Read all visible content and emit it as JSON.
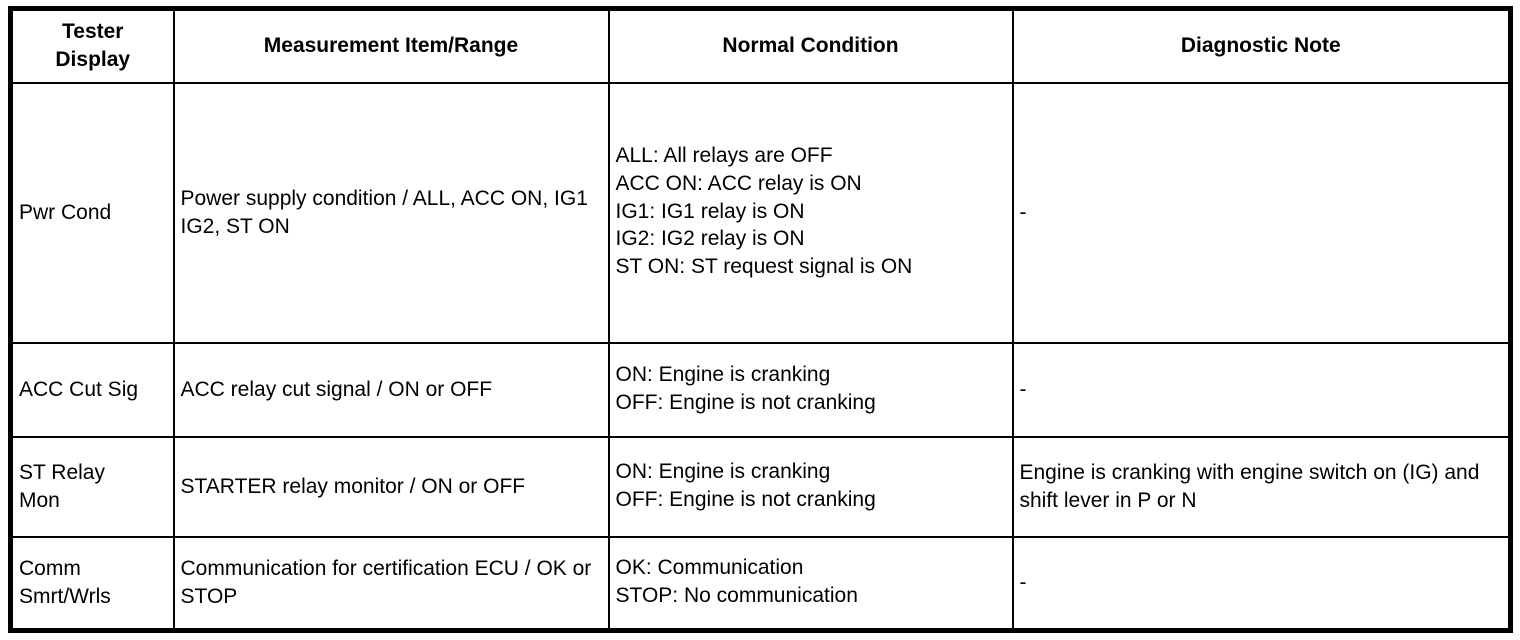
{
  "table": {
    "headers": [
      "Tester\nDisplay",
      "Measurement Item/Range",
      "Normal Condition",
      "Diagnostic Note"
    ],
    "rows": [
      {
        "tester_display": "Pwr Cond",
        "measurement": "Power supply condition / ALL, ACC ON, IG1 IG2, ST ON",
        "normal_conditions": [
          "ALL: All relays are OFF",
          "ACC ON: ACC relay is ON",
          "IG1: IG1 relay is ON",
          "IG2: IG2 relay is ON",
          "ST ON: ST request signal is ON"
        ],
        "diagnostic_note": "-"
      },
      {
        "tester_display": "ACC Cut Sig",
        "measurement": "ACC relay cut signal / ON or OFF",
        "normal_conditions": [
          "ON: Engine is cranking",
          "OFF: Engine is not cranking"
        ],
        "diagnostic_note": "-"
      },
      {
        "tester_display": "ST Relay\nMon",
        "measurement": "STARTER relay monitor / ON or OFF",
        "normal_conditions": [
          "ON: Engine is cranking",
          "OFF: Engine is not cranking"
        ],
        "diagnostic_note": "Engine is cranking with engine switch on (IG) and shift lever in P or N"
      },
      {
        "tester_display": "Comm\nSmrt/Wrls",
        "measurement": "Communication for certification ECU / OK or STOP",
        "normal_conditions": [
          "OK: Communication",
          "STOP: No communication"
        ],
        "diagnostic_note": "-"
      }
    ]
  },
  "colors": {
    "border": "#000000",
    "text": "#000000",
    "background": "#ffffff"
  }
}
